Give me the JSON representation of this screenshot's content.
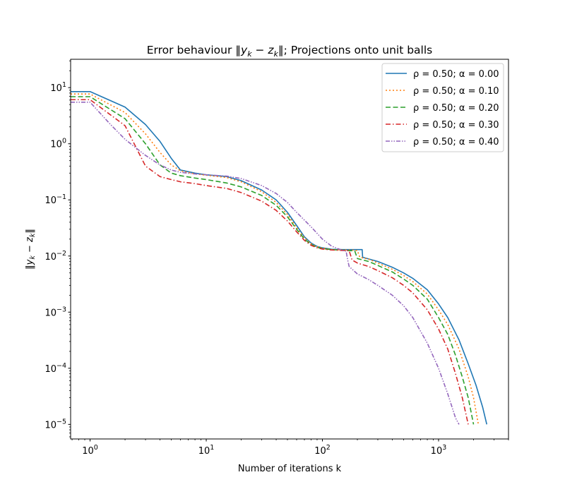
{
  "chart_data": {
    "type": "line",
    "title_prefix": "Error behaviour ",
    "title_math": "‖y",
    "title_sub1": "k",
    "title_mid": " − z",
    "title_sub2": "k",
    "title_suffix": "‖; Projections onto unit balls",
    "xlabel": "Number of iterations k",
    "ylabel_math": "‖y",
    "ylabel_sub1": "k",
    "ylabel_mid": " − z",
    "ylabel_sub2": "k",
    "ylabel_end": "‖",
    "xscale": "log",
    "yscale": "log",
    "xlim": [
      0.68,
      4000
    ],
    "ylim": [
      5.5e-06,
      32
    ],
    "x_ticks": [
      {
        "value": 1,
        "base": "10",
        "exp": "0"
      },
      {
        "value": 10,
        "base": "10",
        "exp": "1"
      },
      {
        "value": 100,
        "base": "10",
        "exp": "2"
      },
      {
        "value": 1000,
        "base": "10",
        "exp": "3"
      }
    ],
    "y_ticks": [
      {
        "value": 10,
        "base": "10",
        "exp": "1"
      },
      {
        "value": 1,
        "base": "10",
        "exp": "0"
      },
      {
        "value": 0.1,
        "base": "10",
        "exp": "−1"
      },
      {
        "value": 0.01,
        "base": "10",
        "exp": "−2"
      },
      {
        "value": 0.001,
        "base": "10",
        "exp": "−3"
      },
      {
        "value": 0.0001,
        "base": "10",
        "exp": "−4"
      },
      {
        "value": 1e-05,
        "base": "10",
        "exp": "−5"
      }
    ],
    "legend_position": "top-right",
    "grid": false,
    "series": [
      {
        "name": "ρ = 0.50; α = 0.00",
        "color": "#1f77b4",
        "dash": "",
        "x": [
          0.68,
          1,
          2,
          3,
          4,
          5,
          6,
          8,
          10,
          15,
          20,
          30,
          40,
          50,
          60,
          70,
          80,
          90,
          100,
          120,
          150,
          200,
          220,
          222,
          230,
          300,
          400,
          500,
          600,
          800,
          1000,
          1200,
          1500,
          1800,
          2100,
          2400,
          2600
        ],
        "y": [
          8.5,
          8.5,
          4.5,
          2.2,
          1.1,
          0.55,
          0.34,
          0.3,
          0.28,
          0.26,
          0.22,
          0.15,
          0.1,
          0.06,
          0.035,
          0.022,
          0.017,
          0.0148,
          0.014,
          0.0132,
          0.013,
          0.013,
          0.013,
          0.0095,
          0.0093,
          0.008,
          0.0063,
          0.005,
          0.004,
          0.0025,
          0.0014,
          0.0008,
          0.00032,
          0.00012,
          5e-05,
          2e-05,
          1e-05
        ]
      },
      {
        "name": "ρ = 0.50; α = 0.10",
        "color": "#ff7f0e",
        "dash": "2,3",
        "x": [
          0.68,
          1,
          2,
          3,
          4,
          5,
          6,
          8,
          10,
          15,
          20,
          30,
          40,
          50,
          60,
          70,
          80,
          90,
          100,
          120,
          150,
          180,
          200,
          210,
          250,
          300,
          400,
          500,
          600,
          800,
          1000,
          1200,
          1500,
          1800,
          2000,
          2200
        ],
        "y": [
          7.7,
          7.7,
          3.6,
          1.5,
          0.7,
          0.42,
          0.33,
          0.29,
          0.275,
          0.25,
          0.21,
          0.14,
          0.09,
          0.055,
          0.032,
          0.021,
          0.0165,
          0.0146,
          0.0138,
          0.013,
          0.0128,
          0.0128,
          0.0125,
          0.0095,
          0.0088,
          0.0075,
          0.0058,
          0.0045,
          0.0035,
          0.0021,
          0.0011,
          0.0006,
          0.00022,
          7e-05,
          3e-05,
          1e-05
        ]
      },
      {
        "name": "ρ = 0.50; α = 0.20",
        "color": "#2ca02c",
        "dash": "7,3.5",
        "x": [
          0.68,
          1,
          2,
          3,
          4,
          5,
          6,
          8,
          10,
          15,
          20,
          30,
          40,
          50,
          60,
          70,
          80,
          90,
          100,
          120,
          150,
          170,
          190,
          200,
          250,
          300,
          400,
          500,
          600,
          800,
          1000,
          1200,
          1400,
          1600,
          1800,
          2000
        ],
        "y": [
          6.9,
          6.9,
          2.8,
          1.0,
          0.42,
          0.3,
          0.27,
          0.245,
          0.23,
          0.2,
          0.17,
          0.12,
          0.08,
          0.05,
          0.03,
          0.02,
          0.016,
          0.0143,
          0.0135,
          0.013,
          0.0127,
          0.0125,
          0.0123,
          0.009,
          0.008,
          0.0068,
          0.0052,
          0.0039,
          0.003,
          0.0017,
          0.0008,
          0.0004,
          0.00017,
          7e-05,
          3e-05,
          1e-05
        ]
      },
      {
        "name": "ρ = 0.50; α = 0.30",
        "color": "#d62728",
        "dash": "7,3,1.5,3",
        "x": [
          0.68,
          1,
          2,
          3,
          4,
          5,
          6,
          8,
          10,
          15,
          20,
          30,
          40,
          50,
          60,
          70,
          80,
          90,
          100,
          120,
          150,
          170,
          180,
          200,
          250,
          300,
          400,
          500,
          600,
          800,
          1000,
          1200,
          1400,
          1600,
          1800
        ],
        "y": [
          6.1,
          6.1,
          2.1,
          0.4,
          0.26,
          0.23,
          0.21,
          0.195,
          0.18,
          0.16,
          0.135,
          0.095,
          0.065,
          0.042,
          0.027,
          0.019,
          0.0155,
          0.014,
          0.0133,
          0.0128,
          0.0126,
          0.0124,
          0.0085,
          0.0075,
          0.0065,
          0.0055,
          0.0041,
          0.003,
          0.0022,
          0.0011,
          0.0005,
          0.00022,
          8e-05,
          3e-05,
          1e-05
        ]
      },
      {
        "name": "ρ = 0.50; α = 0.40",
        "color": "#9467bd",
        "dash": "6,2,1.5,2,1.5,2",
        "x": [
          0.68,
          1,
          1.5,
          2,
          3,
          4,
          5,
          6,
          8,
          10,
          15,
          20,
          30,
          40,
          50,
          60,
          80,
          100,
          120,
          150,
          160,
          165,
          170,
          200,
          250,
          300,
          400,
          500,
          600,
          800,
          1000,
          1200,
          1400,
          1500
        ],
        "y": [
          5.5,
          5.5,
          2.2,
          1.2,
          0.62,
          0.42,
          0.34,
          0.31,
          0.29,
          0.28,
          0.265,
          0.24,
          0.18,
          0.13,
          0.09,
          0.06,
          0.033,
          0.02,
          0.015,
          0.0125,
          0.0122,
          0.0085,
          0.0065,
          0.0048,
          0.0038,
          0.003,
          0.002,
          0.0013,
          0.0008,
          0.00028,
          0.0001,
          3.5e-05,
          1.3e-05,
          1e-05
        ]
      }
    ]
  }
}
